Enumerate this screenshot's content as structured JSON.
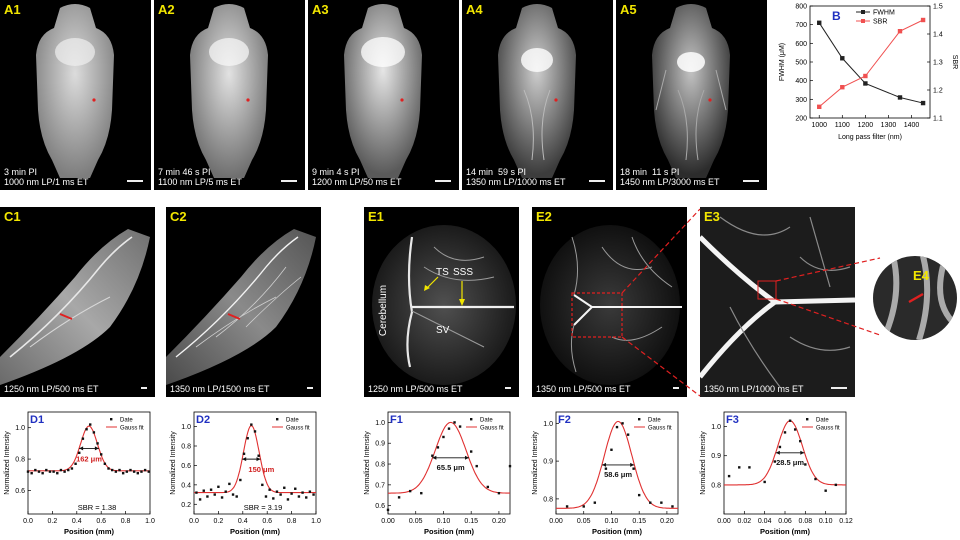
{
  "images": [
    {
      "id": "A1",
      "caption": "3 min PI\n1000 nm LP/1 ms ET"
    },
    {
      "id": "A2",
      "caption": "7 min 46 s PI\n1100 nm LP/5 ms ET"
    },
    {
      "id": "A3",
      "caption": "9 min 4 s PI\n1200 nm LP/50 ms ET"
    },
    {
      "id": "A4",
      "caption": "14 min  59 s PI\n1350 nm LP/1000 ms ET"
    },
    {
      "id": "A5",
      "caption": "18 min  11 s PI\n1450 nm LP/3000 ms ET"
    },
    {
      "id": "C1",
      "caption": "1250 nm LP/500 ms ET"
    },
    {
      "id": "C2",
      "caption": "1350 nm LP/1500 ms ET"
    },
    {
      "id": "E1",
      "caption": "1250 nm LP/500 ms ET"
    },
    {
      "id": "E2",
      "caption": "1350 nm LP/500 ms ET"
    },
    {
      "id": "E3",
      "caption": "1350 nm LP/1000 ms ET"
    },
    {
      "id": "E4",
      "caption": ""
    }
  ],
  "annotations": {
    "cerebellum": "Cerebellum",
    "ts": "TS",
    "sss": "SSS",
    "sv": "SV"
  },
  "chart_data": [
    {
      "id": "B",
      "type": "line",
      "xlabel": "Long pass filter (nm)",
      "ylabel": "FWHM  (μM)",
      "y2label": "SBR",
      "x": [
        1000,
        1100,
        1200,
        1350,
        1450
      ],
      "xlim": [
        960,
        1480
      ],
      "xticks": [
        1000,
        1100,
        1200,
        1300,
        1400
      ],
      "ylim": [
        200,
        800
      ],
      "yticks": [
        200,
        300,
        400,
        500,
        600,
        700,
        800
      ],
      "y2lim": [
        1.1,
        1.5
      ],
      "y2ticks": [
        1.1,
        1.2,
        1.3,
        1.4,
        1.5
      ],
      "series": [
        {
          "name": "FWHM",
          "axis": "left",
          "color": "#222222",
          "marker": "square",
          "values": [
            710,
            520,
            385,
            310,
            280
          ]
        },
        {
          "name": "SBR",
          "axis": "right",
          "color": "#f05050",
          "marker": "square",
          "values": [
            1.14,
            1.21,
            1.25,
            1.41,
            1.45
          ]
        }
      ],
      "legend": "top-right",
      "grid": false
    },
    {
      "id": "D1",
      "type": "scatter",
      "xlabel": "Position (mm)",
      "ylabel": "Normalized Intensity",
      "xlim": [
        0,
        1
      ],
      "xticks": [
        "0.0",
        "0.2",
        "0.4",
        "0.6",
        "0.8",
        "1.0"
      ],
      "ylim": [
        0.45,
        1.1
      ],
      "yticks": [
        "0.6",
        "0.8",
        "1.0"
      ],
      "legend_entries": [
        "Date",
        "Gauss fit"
      ],
      "fwhm_label": "162 μm",
      "sbr_label": "SBR = 1.38",
      "fit": {
        "base": 0.725,
        "amp": 0.285,
        "center": 0.5,
        "sigma": 0.069,
        "fwhm_y": 0.868,
        "fwhm_range": [
          0.419,
          0.581
        ]
      },
      "points": [
        [
          0.0,
          0.72
        ],
        [
          0.03,
          0.71
        ],
        [
          0.06,
          0.73
        ],
        [
          0.09,
          0.72
        ],
        [
          0.12,
          0.71
        ],
        [
          0.15,
          0.73
        ],
        [
          0.18,
          0.72
        ],
        [
          0.21,
          0.72
        ],
        [
          0.24,
          0.71
        ],
        [
          0.27,
          0.73
        ],
        [
          0.3,
          0.72
        ],
        [
          0.33,
          0.73
        ],
        [
          0.36,
          0.74
        ],
        [
          0.39,
          0.77
        ],
        [
          0.42,
          0.84
        ],
        [
          0.45,
          0.93
        ],
        [
          0.48,
          0.99
        ],
        [
          0.51,
          1.02
        ],
        [
          0.54,
          0.97
        ],
        [
          0.57,
          0.9
        ],
        [
          0.6,
          0.83
        ],
        [
          0.63,
          0.77
        ],
        [
          0.66,
          0.74
        ],
        [
          0.69,
          0.73
        ],
        [
          0.72,
          0.72
        ],
        [
          0.75,
          0.73
        ],
        [
          0.78,
          0.71
        ],
        [
          0.81,
          0.72
        ],
        [
          0.84,
          0.73
        ],
        [
          0.87,
          0.72
        ],
        [
          0.9,
          0.71
        ],
        [
          0.93,
          0.72
        ],
        [
          0.96,
          0.73
        ],
        [
          0.99,
          0.72
        ]
      ]
    },
    {
      "id": "D2",
      "type": "scatter",
      "xlabel": "Position (mm)",
      "ylabel": "Normalized Intensity",
      "xlim": [
        0,
        1
      ],
      "xticks": [
        "0.0",
        "0.2",
        "0.4",
        "0.6",
        "0.8",
        "1.0"
      ],
      "ylim": [
        0.1,
        1.15
      ],
      "yticks": [
        "0.2",
        "0.4",
        "0.6",
        "0.8",
        "1.0"
      ],
      "legend_entries": [
        "Date",
        "Gauss fit"
      ],
      "fwhm_label": "150 μm",
      "sbr_label": "SBR = 3.19",
      "fit": {
        "base": 0.32,
        "amp": 0.69,
        "center": 0.47,
        "sigma": 0.064,
        "fwhm_y": 0.665,
        "fwhm_range": [
          0.395,
          0.545
        ]
      },
      "points": [
        [
          0.02,
          0.32
        ],
        [
          0.05,
          0.25
        ],
        [
          0.08,
          0.34
        ],
        [
          0.11,
          0.28
        ],
        [
          0.14,
          0.35
        ],
        [
          0.17,
          0.3
        ],
        [
          0.2,
          0.38
        ],
        [
          0.23,
          0.27
        ],
        [
          0.26,
          0.33
        ],
        [
          0.29,
          0.41
        ],
        [
          0.32,
          0.3
        ],
        [
          0.35,
          0.28
        ],
        [
          0.38,
          0.45
        ],
        [
          0.41,
          0.72
        ],
        [
          0.44,
          0.88
        ],
        [
          0.47,
          1.02
        ],
        [
          0.5,
          0.95
        ],
        [
          0.53,
          0.7
        ],
        [
          0.56,
          0.4
        ],
        [
          0.59,
          0.28
        ],
        [
          0.62,
          0.35
        ],
        [
          0.65,
          0.26
        ],
        [
          0.68,
          0.33
        ],
        [
          0.71,
          0.3
        ],
        [
          0.74,
          0.37
        ],
        [
          0.77,
          0.25
        ],
        [
          0.8,
          0.31
        ],
        [
          0.83,
          0.36
        ],
        [
          0.86,
          0.28
        ],
        [
          0.89,
          0.32
        ],
        [
          0.92,
          0.27
        ],
        [
          0.95,
          0.33
        ],
        [
          0.98,
          0.3
        ]
      ]
    },
    {
      "id": "F1",
      "type": "scatter",
      "xlabel": "Position (mm)",
      "ylabel": "Normalized Intensity",
      "xlim": [
        0,
        0.22
      ],
      "xticks": [
        "0.00",
        "0.05",
        "0.10",
        "0.15",
        "0.20"
      ],
      "ylim": [
        0.56,
        1.05
      ],
      "yticks": [
        "0.6",
        "0.7",
        "0.8",
        "0.9",
        "1.0"
      ],
      "legend_entries": [
        "Date",
        "Gauss fit"
      ],
      "fwhm_label": "65.5 μm",
      "sbr_label": "",
      "fit": {
        "base": 0.66,
        "amp": 0.34,
        "center": 0.113,
        "sigma": 0.0278,
        "fwhm_y": 0.83,
        "fwhm_range": [
          0.08,
          0.146
        ]
      },
      "points": [
        [
          0.0,
          0.58
        ],
        [
          0.02,
          0.64
        ],
        [
          0.04,
          0.67
        ],
        [
          0.06,
          0.66
        ],
        [
          0.08,
          0.84
        ],
        [
          0.09,
          0.88
        ],
        [
          0.1,
          0.93
        ],
        [
          0.11,
          0.97
        ],
        [
          0.12,
          1.0
        ],
        [
          0.13,
          0.98
        ],
        [
          0.15,
          0.86
        ],
        [
          0.16,
          0.79
        ],
        [
          0.18,
          0.69
        ],
        [
          0.2,
          0.66
        ],
        [
          0.22,
          0.79
        ]
      ]
    },
    {
      "id": "F2",
      "type": "scatter",
      "xlabel": "Position (mm)",
      "ylabel": "Normalized Intensity",
      "xlim": [
        0,
        0.22
      ],
      "xticks": [
        "0.00",
        "0.05",
        "0.10",
        "0.15",
        "0.20"
      ],
      "ylim": [
        0.76,
        1.03
      ],
      "yticks": [
        "0.8",
        "0.9",
        "1.0"
      ],
      "legend_entries": [
        "Date",
        "Gauss fit"
      ],
      "fwhm_label": "58.6 μm",
      "sbr_label": "",
      "fit": {
        "base": 0.775,
        "amp": 0.23,
        "center": 0.112,
        "sigma": 0.0249,
        "fwhm_y": 0.89,
        "fwhm_range": [
          0.083,
          0.141
        ]
      },
      "points": [
        [
          0.02,
          0.78
        ],
        [
          0.05,
          0.78
        ],
        [
          0.07,
          0.79
        ],
        [
          0.09,
          0.88
        ],
        [
          0.1,
          0.93
        ],
        [
          0.11,
          0.99
        ],
        [
          0.12,
          1.0
        ],
        [
          0.13,
          0.97
        ],
        [
          0.14,
          0.88
        ],
        [
          0.15,
          0.81
        ],
        [
          0.17,
          0.79
        ],
        [
          0.19,
          0.79
        ],
        [
          0.21,
          0.78
        ]
      ]
    },
    {
      "id": "F3",
      "type": "scatter",
      "xlabel": "Position (mm)",
      "ylabel": "Normalized Intensity",
      "xlim": [
        0,
        0.12
      ],
      "xticks": [
        "0.00",
        "0.02",
        "0.04",
        "0.06",
        "0.08",
        "0.10",
        "0.12"
      ],
      "ylim": [
        0.7,
        1.05
      ],
      "yticks": [
        "0.8",
        "0.9",
        "1.0"
      ],
      "legend_entries": [
        "Date",
        "Gauss fit"
      ],
      "fwhm_label": "28.5 μm",
      "sbr_label": "",
      "fit": {
        "base": 0.8,
        "amp": 0.22,
        "center": 0.065,
        "sigma": 0.0121,
        "fwhm_y": 0.91,
        "fwhm_range": [
          0.051,
          0.079
        ]
      },
      "points": [
        [
          0.005,
          0.83
        ],
        [
          0.015,
          0.86
        ],
        [
          0.025,
          0.86
        ],
        [
          0.04,
          0.81
        ],
        [
          0.05,
          0.88
        ],
        [
          0.055,
          0.93
        ],
        [
          0.06,
          0.98
        ],
        [
          0.065,
          1.02
        ],
        [
          0.07,
          0.99
        ],
        [
          0.075,
          0.95
        ],
        [
          0.08,
          0.87
        ],
        [
          0.09,
          0.82
        ],
        [
          0.1,
          0.78
        ],
        [
          0.11,
          0.8
        ]
      ]
    }
  ]
}
